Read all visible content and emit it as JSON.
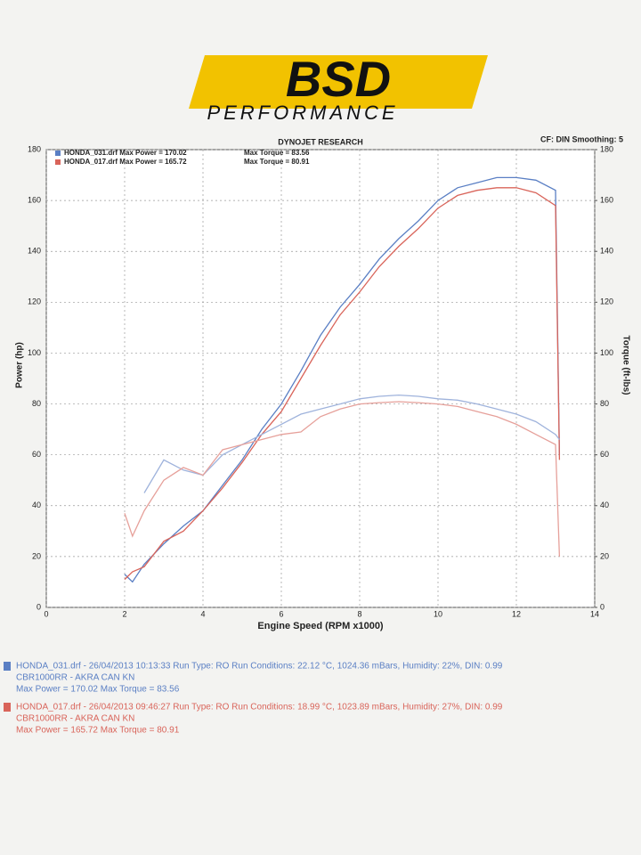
{
  "chart_data": {
    "type": "line",
    "logo": {
      "brand": "BSD",
      "tagline": "PERFORMANCE"
    },
    "title": "DYNOJET RESEARCH",
    "subtitle": "CF: DIN  Smoothing: 5",
    "y_label": "Power (hp)",
    "y2_label": "Torque (ft-lbs)",
    "x_label": "Engine Speed (RPM x1000)",
    "legend": [
      {
        "power": "HONDA_031.drf Max Power = 170.02",
        "torque": "Max Torque = 83.56",
        "color": "#5a7fc4"
      },
      {
        "power": "HONDA_017.drf Max Power = 165.72",
        "torque": "Max Torque = 80.91",
        "color": "#d9645a"
      }
    ],
    "x": [
      2,
      2.2,
      2.5,
      3,
      3.5,
      4,
      4.5,
      5,
      5.5,
      6,
      6.5,
      7,
      7.5,
      8,
      8.5,
      9,
      9.5,
      10,
      10.5,
      11,
      11.5,
      12,
      12.5,
      13,
      13.1
    ],
    "series": [
      {
        "color": "#5a7fc4",
        "values": [
          13,
          10,
          17,
          25,
          32,
          38,
          48,
          58,
          70,
          80,
          93,
          107,
          118,
          127,
          137,
          145,
          152,
          160,
          165,
          167,
          169,
          169,
          168,
          164,
          60
        ]
      },
      {
        "color": "#d9645a",
        "values": [
          11,
          14,
          16,
          26,
          30,
          38,
          47,
          57,
          68,
          77,
          90,
          103,
          115,
          124,
          134,
          142,
          149,
          157,
          162,
          164,
          165,
          165,
          163,
          158,
          58
        ]
      },
      {
        "color": "#9fb3dc",
        "axis": "y2",
        "values": [
          null,
          null,
          45,
          58,
          54,
          52,
          60,
          64,
          68,
          72,
          76,
          78,
          80,
          82,
          83,
          83.5,
          83,
          82,
          81.5,
          80,
          78,
          76,
          73,
          68,
          66
        ]
      },
      {
        "color": "#e6a09a",
        "axis": "y2",
        "values": [
          37,
          28,
          38,
          50,
          55,
          52,
          62,
          64,
          66,
          68,
          69,
          75,
          78,
          80,
          80.5,
          80.9,
          80.5,
          80,
          79,
          77,
          75,
          72,
          68,
          64,
          20
        ]
      }
    ],
    "xlim": [
      0,
      14
    ],
    "xticks": [
      0,
      2,
      4,
      6,
      8,
      10,
      12,
      14
    ],
    "ylim": [
      0,
      180
    ],
    "yticks": [
      0,
      20,
      40,
      60,
      80,
      100,
      120,
      140,
      160,
      180
    ],
    "y2lim": [
      0,
      180
    ],
    "y2ticks": [
      0,
      20,
      40,
      60,
      80,
      100,
      120,
      140,
      160,
      180
    ],
    "grid": true,
    "run_info": [
      {
        "color": "#5a7fc4",
        "lines": [
          "HONDA_031.drf - 26/04/2013 10:13:33  Run Type: RO  Run Conditions: 22.12 °C, 1024.36 mBars,  Humidity: 22%, DIN: 0.99",
          "CBR1000RR - AKRA CAN  KN",
          "Max Power = 170.02  Max Torque = 83.56"
        ]
      },
      {
        "color": "#d9645a",
        "lines": [
          "HONDA_017.drf - 26/04/2013 09:46:27  Run Type: RO  Run Conditions: 18.99 °C, 1023.89 mBars,  Humidity: 27%, DIN: 0.99",
          "CBR1000RR - AKRA CAN  KN",
          "Max Power = 165.72  Max Torque = 80.91"
        ]
      }
    ]
  }
}
